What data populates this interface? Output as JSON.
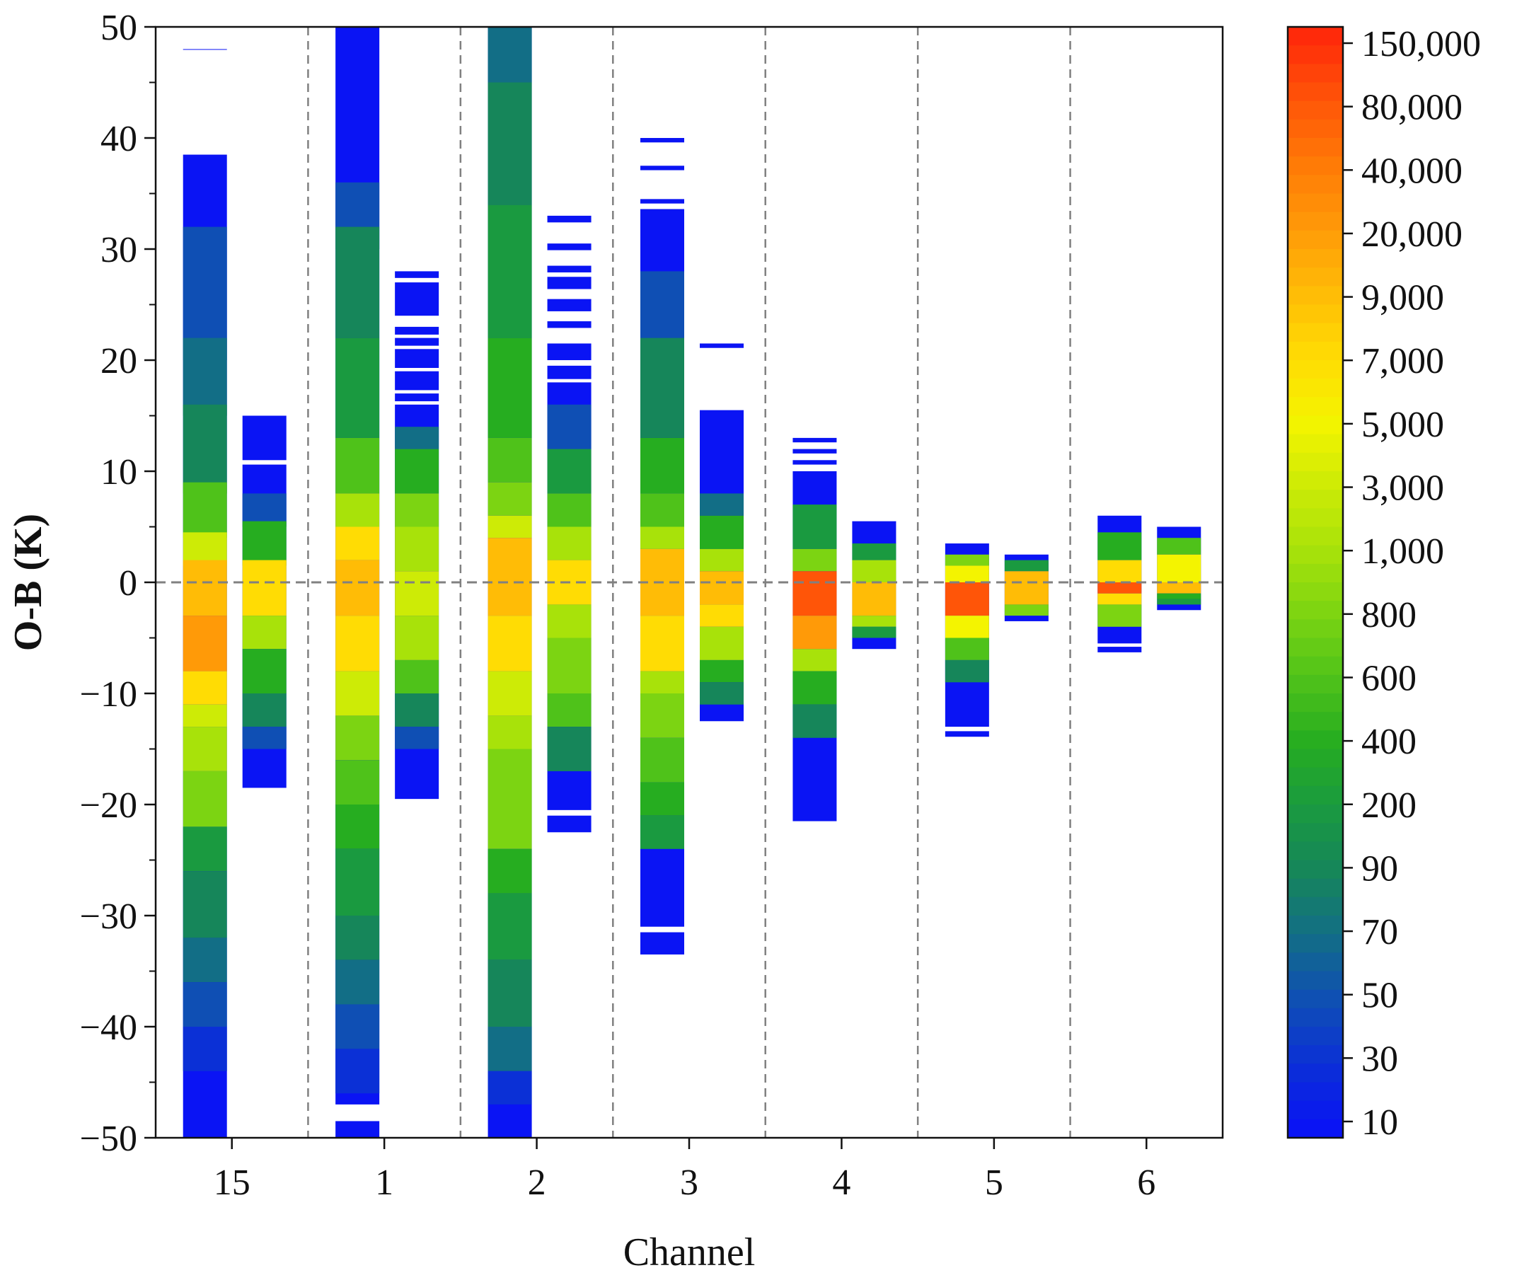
{
  "chart_data": {
    "type": "heatmap",
    "xlabel": "Channel",
    "ylabel": "O-B (K)",
    "ylim": [
      -50,
      50
    ],
    "yticks": [
      50,
      40,
      30,
      20,
      10,
      0,
      -10,
      -20,
      -30,
      -40,
      -50
    ],
    "ytick_labels": [
      "50",
      "40",
      "30",
      "20",
      "10",
      "0",
      "−10",
      "−20",
      "−30",
      "−40",
      "−50"
    ],
    "categories": [
      "15",
      "1",
      "2",
      "3",
      "4",
      "5",
      "6"
    ],
    "zero_line": 0,
    "colorbar": {
      "ticks": [
        "150,000",
        "80,000",
        "40,000",
        "20,000",
        "9,000",
        "7,000",
        "5,000",
        "3,000",
        "1,000",
        "800",
        "600",
        "400",
        "200",
        "90",
        "70",
        "50",
        "30",
        "10"
      ],
      "colors": [
        "#ff2a0a",
        "#ff5508",
        "#ff7a06",
        "#ff9a08",
        "#ffbc06",
        "#ffdc04",
        "#f4f400",
        "#cdeb06",
        "#a8e20a",
        "#7cd412",
        "#4fc21a",
        "#26ad20",
        "#1a9a40",
        "#16865a",
        "#126e86",
        "#0f4fb4",
        "#0b30d6",
        "#0a14f4"
      ]
    },
    "series": [
      {
        "name": "15 (left)",
        "bands": [
          [
            48.0,
            49.0,
            0
          ],
          [
            38.5,
            -50,
            0
          ],
          [
            32,
            20,
            2
          ],
          [
            22,
            15,
            3
          ],
          [
            16,
            8,
            4
          ],
          [
            9,
            4,
            7
          ],
          [
            4.5,
            1.5,
            10
          ],
          [
            2,
            -3,
            13
          ],
          [
            -3,
            -8,
            14
          ],
          [
            -8,
            -11,
            12
          ],
          [
            -11,
            -13,
            10
          ],
          [
            -13,
            -17,
            9
          ],
          [
            -17,
            -22,
            8
          ],
          [
            -22,
            -26,
            5
          ],
          [
            -26,
            -32,
            4
          ],
          [
            -32,
            -36,
            3
          ],
          [
            -36,
            -40,
            2
          ],
          [
            -40,
            -44,
            1
          ]
        ]
      },
      {
        "name": "15 (right)",
        "bands": [
          [
            15.0,
            11.0,
            0
          ],
          [
            10.6,
            -18.5,
            0
          ],
          [
            8,
            5,
            2
          ],
          [
            5.5,
            1.5,
            6
          ],
          [
            2,
            -3,
            12
          ],
          [
            -3,
            -6,
            9
          ],
          [
            -6,
            -10,
            6
          ],
          [
            -10,
            -13,
            4
          ],
          [
            -13,
            -15,
            2
          ]
        ]
      },
      {
        "name": "1 (left)",
        "bands": [
          [
            50,
            -47.0,
            0
          ],
          [
            -48.5,
            -50,
            0
          ],
          [
            36,
            30,
            2
          ],
          [
            32,
            22,
            4
          ],
          [
            22,
            13,
            5
          ],
          [
            13,
            8,
            7
          ],
          [
            8,
            5,
            9
          ],
          [
            5,
            2,
            12
          ],
          [
            2,
            -3,
            13
          ],
          [
            -3,
            -8,
            12
          ],
          [
            -8,
            -12,
            10
          ],
          [
            -12,
            -16,
            8
          ],
          [
            -16,
            -20,
            7
          ],
          [
            -20,
            -24,
            6
          ],
          [
            -24,
            -30,
            5
          ],
          [
            -30,
            -34,
            4
          ],
          [
            -34,
            -38,
            3
          ],
          [
            -38,
            -42,
            2
          ],
          [
            -42,
            -46,
            1
          ]
        ]
      },
      {
        "name": "1 (right)",
        "bands": [
          [
            28.0,
            27.4,
            0
          ],
          [
            27.0,
            24.0,
            0
          ],
          [
            23.0,
            22.3,
            0
          ],
          [
            22.0,
            21.3,
            0
          ],
          [
            21.0,
            19.3,
            0
          ],
          [
            19.0,
            17.3,
            0
          ],
          [
            17.0,
            16.3,
            0
          ],
          [
            16.0,
            -19.5,
            0
          ],
          [
            14,
            12,
            3
          ],
          [
            12,
            8,
            6
          ],
          [
            8,
            5,
            8
          ],
          [
            5,
            1,
            9
          ],
          [
            1,
            -3,
            10
          ],
          [
            -3,
            -7,
            9
          ],
          [
            -7,
            -10,
            7
          ],
          [
            -10,
            -13,
            4
          ],
          [
            -13,
            -15,
            2
          ]
        ]
      },
      {
        "name": "2 (left)",
        "bands": [
          [
            50,
            -50,
            0
          ],
          [
            50,
            45,
            3
          ],
          [
            45,
            34,
            4
          ],
          [
            34,
            22,
            5
          ],
          [
            22,
            13,
            6
          ],
          [
            13,
            9,
            7
          ],
          [
            9,
            6,
            8
          ],
          [
            6,
            4,
            10
          ],
          [
            4,
            -3,
            13
          ],
          [
            -3,
            -8,
            12
          ],
          [
            -8,
            -12,
            10
          ],
          [
            -12,
            -15,
            9
          ],
          [
            -15,
            -24,
            8
          ],
          [
            -24,
            -28,
            6
          ],
          [
            -28,
            -34,
            5
          ],
          [
            -34,
            -40,
            4
          ],
          [
            -40,
            -44,
            3
          ],
          [
            -44,
            -47,
            1
          ]
        ]
      },
      {
        "name": "2 (right)",
        "bands": [
          [
            33.0,
            32.4,
            0
          ],
          [
            30.5,
            29.9,
            0
          ],
          [
            28.5,
            27.9,
            0
          ],
          [
            27.5,
            26.4,
            0
          ],
          [
            25.5,
            24.4,
            0
          ],
          [
            23.5,
            22.9,
            0
          ],
          [
            21.5,
            20.0,
            0
          ],
          [
            19.5,
            18.3,
            0
          ],
          [
            18.0,
            -20.5,
            0
          ],
          [
            -21.0,
            -22.5,
            0
          ],
          [
            16,
            12,
            2
          ],
          [
            12,
            8,
            5
          ],
          [
            8,
            5,
            7
          ],
          [
            5,
            2,
            9
          ],
          [
            2,
            -2,
            12
          ],
          [
            -2,
            -5,
            9
          ],
          [
            -5,
            -10,
            8
          ],
          [
            -10,
            -13,
            7
          ],
          [
            -13,
            -17,
            4
          ]
        ]
      },
      {
        "name": "3 (left)",
        "bands": [
          [
            40.0,
            39.6,
            0
          ],
          [
            37.5,
            37.1,
            0
          ],
          [
            34.5,
            34.1,
            0
          ],
          [
            33.6,
            -31.0,
            0
          ],
          [
            -31.5,
            -33.5,
            0
          ],
          [
            28,
            22,
            2
          ],
          [
            22,
            13,
            4
          ],
          [
            13,
            8,
            6
          ],
          [
            8,
            5,
            7
          ],
          [
            5,
            3,
            9
          ],
          [
            3,
            -3,
            13
          ],
          [
            -3,
            -8,
            12
          ],
          [
            -8,
            -10,
            9
          ],
          [
            -10,
            -14,
            8
          ],
          [
            -14,
            -18,
            7
          ],
          [
            -18,
            -21,
            6
          ],
          [
            -21,
            -24,
            5
          ]
        ]
      },
      {
        "name": "3 (right)",
        "bands": [
          [
            21.5,
            21.1,
            0
          ],
          [
            15.5,
            -12.5,
            0
          ],
          [
            8,
            6,
            3
          ],
          [
            6,
            3,
            6
          ],
          [
            3,
            1,
            9
          ],
          [
            1,
            -2,
            13
          ],
          [
            -2,
            -4,
            12
          ],
          [
            -4,
            -7,
            9
          ],
          [
            -7,
            -9,
            6
          ],
          [
            -9,
            -11,
            4
          ]
        ]
      },
      {
        "name": "4 (left)",
        "bands": [
          [
            13.0,
            12.6,
            0
          ],
          [
            12.0,
            11.6,
            0
          ],
          [
            11.0,
            10.6,
            0
          ],
          [
            10.0,
            -21.5,
            0
          ],
          [
            7,
            3,
            5
          ],
          [
            3,
            1,
            8
          ],
          [
            1,
            -3,
            16
          ],
          [
            -3,
            -6,
            14
          ],
          [
            -6,
            -8,
            9
          ],
          [
            -8,
            -11,
            6
          ],
          [
            -11,
            -14,
            4
          ]
        ]
      },
      {
        "name": "4 (right)",
        "bands": [
          [
            5.5,
            -6.0,
            0
          ],
          [
            3.5,
            2,
            5
          ],
          [
            2,
            0,
            9
          ],
          [
            0,
            -3,
            13
          ],
          [
            -3,
            -4,
            9
          ],
          [
            -4,
            -5,
            5
          ]
        ]
      },
      {
        "name": "5 (left)",
        "bands": [
          [
            3.5,
            -13.0,
            0
          ],
          [
            -13.4,
            -13.9,
            0
          ],
          [
            2.5,
            1.5,
            8
          ],
          [
            1.5,
            0,
            11
          ],
          [
            0,
            -3,
            16
          ],
          [
            -3,
            -5,
            11
          ],
          [
            -5,
            -7,
            7
          ],
          [
            -7,
            -9,
            4
          ]
        ]
      },
      {
        "name": "5 (right)",
        "bands": [
          [
            2.5,
            -3.5,
            0
          ],
          [
            2,
            1,
            5
          ],
          [
            1,
            -2,
            13
          ],
          [
            -2,
            -3,
            8
          ]
        ]
      },
      {
        "name": "6 (left)",
        "bands": [
          [
            6.0,
            -5.5,
            0
          ],
          [
            -5.8,
            -6.3,
            0
          ],
          [
            4.5,
            2,
            6
          ],
          [
            2,
            0,
            12
          ],
          [
            0,
            -1,
            16
          ],
          [
            -1,
            -2,
            12
          ],
          [
            -2,
            -4,
            8
          ]
        ]
      },
      {
        "name": "6 (right)",
        "bands": [
          [
            5.0,
            -2.5,
            0
          ],
          [
            4,
            2.5,
            7
          ],
          [
            2.5,
            0,
            11
          ],
          [
            0,
            -1,
            13
          ],
          [
            -1,
            -1.5,
            6
          ],
          [
            -1.5,
            -2,
            5
          ]
        ]
      }
    ]
  }
}
